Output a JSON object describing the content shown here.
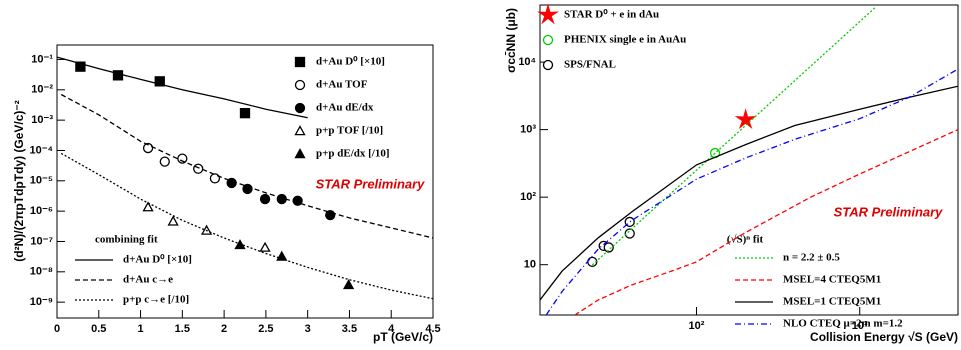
{
  "chart_data": [
    {
      "type": "scatter",
      "log_y": true,
      "x_label": "pT (GeV/c)",
      "y_label": "(d²N)/(2πpTdpTdy) (GeV/c)⁻²",
      "xlim": [
        0,
        4.5
      ],
      "xticks": [
        0,
        0.5,
        1,
        1.5,
        2,
        2.5,
        3,
        3.5,
        4,
        4.5
      ],
      "ylim": [
        3e-10,
        0.3
      ],
      "yticks": [
        {
          "value": 1e-09,
          "label": "10⁻⁹"
        },
        {
          "value": 1e-08,
          "label": "10⁻⁸"
        },
        {
          "value": 1e-07,
          "label": "10⁻⁷"
        },
        {
          "value": 1e-06,
          "label": "10⁻⁶"
        },
        {
          "value": 1e-05,
          "label": "10⁻⁵"
        },
        {
          "value": 0.0001,
          "label": "10⁻⁴"
        },
        {
          "value": 0.001,
          "label": "10⁻³"
        },
        {
          "value": 0.01,
          "label": "10⁻²"
        },
        {
          "value": 0.1,
          "label": "10⁻¹"
        }
      ],
      "annotations": [
        "STAR Preliminary"
      ],
      "legend_title": "combining fit",
      "series": [
        {
          "name": "d+Au D⁰ [×10]",
          "marker": "square",
          "filled": true,
          "color": "#000000",
          "x": [
            0.28,
            0.73,
            1.23,
            2.25
          ],
          "values": [
            0.058,
            0.03,
            0.019,
            0.0017
          ]
        },
        {
          "name": "d+Au TOF",
          "marker": "circle",
          "filled": false,
          "color": "#000000",
          "x": [
            1.09,
            1.29,
            1.5,
            1.69,
            1.89
          ],
          "values": [
            0.00012,
            4.3e-05,
            5.4e-05,
            2.5e-05,
            1.2e-05
          ]
        },
        {
          "name": "d+Au dE/dx",
          "marker": "circle",
          "filled": true,
          "color": "#000000",
          "x": [
            2.09,
            2.28,
            2.49,
            2.69,
            2.88,
            3.27
          ],
          "values": [
            8.5e-06,
            5.4e-06,
            2.5e-06,
            2.5e-06,
            2.2e-06,
            7.4e-07
          ]
        },
        {
          "name": "p+p TOF [/10]",
          "marker": "triangle",
          "filled": false,
          "color": "#000000",
          "x": [
            1.09,
            1.39,
            1.79,
            2.49
          ],
          "values": [
            1.35e-06,
            4.6e-07,
            2.3e-07,
            6.3e-08
          ]
        },
        {
          "name": "p+p dE/dx [/10]",
          "marker": "triangle",
          "filled": true,
          "color": "#000000",
          "x": [
            2.19,
            2.69,
            3.49
          ],
          "values": [
            7.7e-08,
            3.2e-08,
            3.7e-09
          ]
        },
        {
          "name": "d+Au D⁰ [×10]",
          "line": "solid",
          "color": "#000000",
          "x": [
            0,
            0.5,
            1,
            1.5,
            2,
            2.5,
            3
          ],
          "values": [
            0.12,
            0.05,
            0.022,
            0.01,
            0.005,
            0.0023,
            0.0012
          ]
        },
        {
          "name": "d+Au c→e",
          "line": "dashed",
          "color": "#000000",
          "x": [
            0.05,
            0.5,
            1,
            1.5,
            2,
            2.5,
            3,
            3.5,
            4,
            4.5
          ],
          "values": [
            0.007,
            0.0015,
            0.0002,
            4.5e-05,
            1.2e-05,
            4e-06,
            1.5e-06,
            6e-07,
            2.8e-07,
            1.3e-07
          ]
        },
        {
          "name": "p+p c→e [/10]",
          "line": "dotted",
          "color": "#000000",
          "x": [
            0.05,
            0.5,
            1,
            1.5,
            2,
            2.5,
            3,
            3.5,
            4,
            4.5
          ],
          "values": [
            8e-05,
            1.6e-05,
            2.5e-06,
            5e-07,
            1.3e-07,
            4e-08,
            1.4e-08,
            5.5e-09,
            2.5e-09,
            1.3e-09
          ]
        }
      ]
    },
    {
      "type": "scatter",
      "log_x": true,
      "log_y": true,
      "x_label": "Collision Energy √S (GeV)",
      "y_label": "σcc̄NN (μb)",
      "xlim": [
        11,
        4000
      ],
      "xticks": [
        {
          "value": 100,
          "label": "10²"
        },
        {
          "value": 1000,
          "label": "10³"
        }
      ],
      "ylim": [
        1.8,
        70000
      ],
      "yticks": [
        10,
        {
          "value": 100,
          "label": "10²"
        },
        {
          "value": 1000,
          "label": "10³"
        },
        {
          "value": 10000,
          "label": "10⁴"
        }
      ],
      "annotations": [
        "STAR Preliminary",
        "(√S)ⁿ fit"
      ],
      "series": [
        {
          "name": "STAR D⁰ + e in dAu",
          "marker": "star",
          "filled": true,
          "color": "#ff0000",
          "x": [
            200
          ],
          "values": [
            1400
          ]
        },
        {
          "name": "PHENIX single e in AuAu",
          "marker": "circle",
          "filled": false,
          "color": "#00cc00",
          "x": [
            130
          ],
          "values": [
            450
          ]
        },
        {
          "name": "SPS/FNAL",
          "marker": "circle",
          "filled": false,
          "color": "#000000",
          "x": [
            23,
            27,
            29,
            39,
            39
          ],
          "values": [
            11,
            19,
            18,
            43,
            29
          ]
        },
        {
          "name": "n = 2.2 ± 0.5",
          "line": "dotted",
          "color": "#00cc00",
          "x": [
            23,
            50,
            100,
            200,
            500,
            1000,
            1250
          ],
          "values": [
            9.9,
            55,
            251,
            1153,
            8660,
            39800,
            65000
          ]
        },
        {
          "name": "MSEL=4 CTEQ5M1",
          "line": "dashed",
          "color": "#ff0000",
          "x": [
            18,
            25,
            40,
            70,
            100,
            200,
            500,
            1000,
            2000,
            4000
          ],
          "values": [
            1.8,
            3,
            5,
            8,
            11,
            30,
            100,
            220,
            470,
            1000
          ]
        },
        {
          "name": "MSEL=1 CTEQ5M1",
          "line": "solid",
          "color": "#000000",
          "x": [
            11,
            15,
            25,
            40,
            100,
            200,
            400,
            1000,
            2000,
            4000
          ],
          "values": [
            3,
            8,
            25,
            60,
            300,
            600,
            1150,
            2000,
            3000,
            4400
          ]
        },
        {
          "name": "NLO CTEQ μ=2m m=1.2",
          "line": "dashdot",
          "color": "#0000ff",
          "x": [
            12,
            15,
            25,
            40,
            100,
            200,
            400,
            1000,
            2000,
            4000
          ],
          "values": [
            1.8,
            4,
            17,
            45,
            185,
            380,
            720,
            1450,
            3000,
            7900
          ]
        }
      ]
    }
  ]
}
